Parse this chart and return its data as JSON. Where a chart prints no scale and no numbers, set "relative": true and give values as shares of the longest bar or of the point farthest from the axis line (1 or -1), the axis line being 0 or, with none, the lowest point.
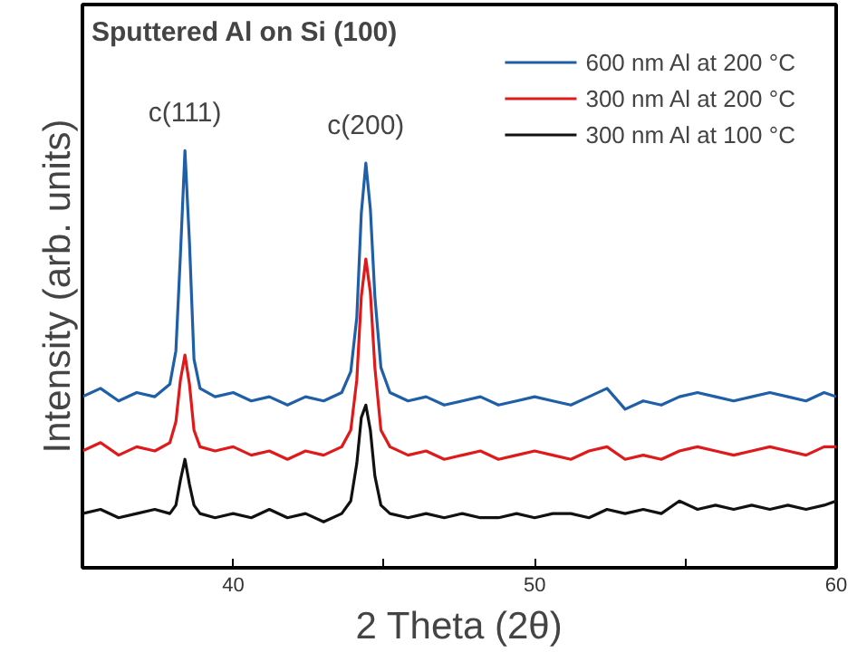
{
  "chart_data": {
    "type": "line",
    "title": "Sputtered Al on Si (100)",
    "xlabel": "2 Theta (2θ)",
    "ylabel": "Intensity (arb. units)",
    "relative": true,
    "legend": "top right",
    "grid": false,
    "line_style": "solid",
    "marker": "none",
    "xlim": [
      35,
      60
    ],
    "xticks": [
      40,
      {
        "value": 45,
        "label": null
      },
      50,
      {
        "value": 55,
        "label": null
      },
      60
    ],
    "annotations": [
      {
        "text": "c(111)",
        "x": 38.4,
        "y": 1.0
      },
      {
        "text": "c(200)",
        "x": 44.4,
        "y": 0.97
      }
    ],
    "x": [
      35,
      35.6,
      36.2,
      36.8,
      37.4,
      37.9,
      38.1,
      38.25,
      38.4,
      38.55,
      38.7,
      38.9,
      39.4,
      40,
      40.6,
      41.2,
      41.8,
      42.4,
      43,
      43.6,
      43.9,
      44.1,
      44.25,
      44.4,
      44.55,
      44.7,
      44.9,
      45.2,
      45.8,
      46.4,
      47,
      47.6,
      48.2,
      48.8,
      49.4,
      50,
      50.6,
      51.2,
      51.8,
      52.4,
      53,
      53.6,
      54.2,
      54.8,
      55.4,
      56,
      56.6,
      57.2,
      57.8,
      58.4,
      59,
      59.6,
      60
    ],
    "series": [
      {
        "name": "600 nm Al at 200 °C",
        "color": "#1f5fa8",
        "values": [
          0.41,
          0.43,
          0.4,
          0.42,
          0.41,
          0.44,
          0.52,
          0.75,
          1.0,
          0.78,
          0.5,
          0.43,
          0.41,
          0.42,
          0.4,
          0.41,
          0.39,
          0.41,
          0.4,
          0.42,
          0.47,
          0.6,
          0.85,
          0.97,
          0.86,
          0.65,
          0.48,
          0.42,
          0.4,
          0.41,
          0.39,
          0.4,
          0.41,
          0.39,
          0.4,
          0.41,
          0.4,
          0.39,
          0.41,
          0.43,
          0.38,
          0.4,
          0.39,
          0.41,
          0.42,
          0.41,
          0.4,
          0.41,
          0.42,
          0.41,
          0.4,
          0.42,
          0.41
        ]
      },
      {
        "name": "300 nm Al at 200 °C",
        "color": "#e0191b",
        "values": [
          0.28,
          0.3,
          0.27,
          0.29,
          0.28,
          0.3,
          0.35,
          0.45,
          0.51,
          0.44,
          0.33,
          0.29,
          0.28,
          0.29,
          0.27,
          0.28,
          0.26,
          0.28,
          0.27,
          0.29,
          0.33,
          0.45,
          0.65,
          0.74,
          0.66,
          0.48,
          0.33,
          0.29,
          0.27,
          0.28,
          0.26,
          0.27,
          0.28,
          0.26,
          0.27,
          0.28,
          0.27,
          0.26,
          0.28,
          0.29,
          0.26,
          0.27,
          0.26,
          0.28,
          0.29,
          0.28,
          0.27,
          0.28,
          0.29,
          0.28,
          0.27,
          0.29,
          0.29
        ]
      },
      {
        "name": "300 nm Al at 100 °C",
        "color": "#111111",
        "values": [
          0.13,
          0.14,
          0.12,
          0.13,
          0.14,
          0.13,
          0.15,
          0.21,
          0.26,
          0.2,
          0.15,
          0.13,
          0.12,
          0.13,
          0.12,
          0.14,
          0.12,
          0.13,
          0.11,
          0.13,
          0.16,
          0.25,
          0.36,
          0.39,
          0.33,
          0.22,
          0.15,
          0.13,
          0.12,
          0.13,
          0.12,
          0.13,
          0.12,
          0.12,
          0.13,
          0.12,
          0.13,
          0.13,
          0.12,
          0.14,
          0.13,
          0.14,
          0.13,
          0.16,
          0.14,
          0.15,
          0.14,
          0.15,
          0.14,
          0.15,
          0.14,
          0.15,
          0.16
        ]
      }
    ]
  }
}
